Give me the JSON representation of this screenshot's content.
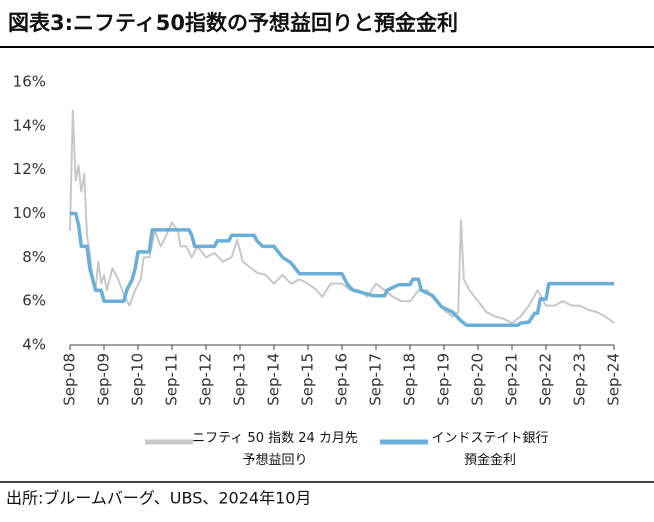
{
  "chart_data": {
    "type": "line",
    "title": "図表3:ニフティ50指数の予想益回りと預金金利",
    "source": "出所:ブルームバーグ、UBS、2024年10月",
    "ylim": [
      4,
      16
    ],
    "yticks": [
      {
        "value": 4,
        "label": "4%"
      },
      {
        "value": 6,
        "label": "6%"
      },
      {
        "value": 8,
        "label": "8%"
      },
      {
        "value": 10,
        "label": "10%"
      },
      {
        "value": 12,
        "label": "12%"
      },
      {
        "value": 14,
        "label": "14%"
      },
      {
        "value": 16,
        "label": "16%"
      }
    ],
    "xlim": [
      "2008-09",
      "2024-09"
    ],
    "xticks": [
      {
        "value": "2008-09",
        "label": "Sep-08"
      },
      {
        "value": "2009-09",
        "label": "Sep-09"
      },
      {
        "value": "2010-09",
        "label": "Sep-10"
      },
      {
        "value": "2011-09",
        "label": "Sep-11"
      },
      {
        "value": "2012-09",
        "label": "Sep-12"
      },
      {
        "value": "2013-09",
        "label": "Sep-13"
      },
      {
        "value": "2014-09",
        "label": "Sep-14"
      },
      {
        "value": "2015-09",
        "label": "Sep-15"
      },
      {
        "value": "2016-09",
        "label": "Sep-16"
      },
      {
        "value": "2017-09",
        "label": "Sep-17"
      },
      {
        "value": "2018-09",
        "label": "Sep-18"
      },
      {
        "value": "2019-09",
        "label": "Sep-19"
      },
      {
        "value": "2020-09",
        "label": "Sep-20"
      },
      {
        "value": "2021-09",
        "label": "Sep-21"
      },
      {
        "value": "2022-09",
        "label": "Sep-22"
      },
      {
        "value": "2023-09",
        "label": "Sep-23"
      },
      {
        "value": "2024-09",
        "label": "Sep-24"
      }
    ],
    "grid": false,
    "series": [
      {
        "name": "ニフティ 50 指数 24 カ月先\n予想益回り",
        "color": "#c8c8c8",
        "x": [
          "2008-09",
          "2008-10",
          "2008-11",
          "2008-12",
          "2009-01",
          "2009-02",
          "2009-03",
          "2009-04",
          "2009-05",
          "2009-06",
          "2009-07",
          "2009-08",
          "2009-09",
          "2009-10",
          "2009-12",
          "2010-02",
          "2010-04",
          "2010-06",
          "2010-08",
          "2010-10",
          "2010-11",
          "2011-01",
          "2011-03",
          "2011-05",
          "2011-07",
          "2011-09",
          "2011-11",
          "2011-12",
          "2012-02",
          "2012-04",
          "2012-06",
          "2012-09",
          "2012-12",
          "2013-03",
          "2013-06",
          "2013-08",
          "2013-10",
          "2014-01",
          "2014-03",
          "2014-06",
          "2014-09",
          "2014-12",
          "2015-03",
          "2015-06",
          "2015-09",
          "2015-12",
          "2016-02",
          "2016-05",
          "2016-09",
          "2016-12",
          "2017-03",
          "2017-06",
          "2017-09",
          "2017-12",
          "2018-03",
          "2018-06",
          "2018-09",
          "2018-12",
          "2019-03",
          "2019-06",
          "2019-09",
          "2019-12",
          "2020-02",
          "2020-03",
          "2020-04",
          "2020-06",
          "2020-09",
          "2020-12",
          "2021-03",
          "2021-06",
          "2021-09",
          "2021-12",
          "2022-03",
          "2022-06",
          "2022-09",
          "2022-12",
          "2023-03",
          "2023-06",
          "2023-09",
          "2023-12",
          "2024-03",
          "2024-06",
          "2024-09"
        ],
        "values": [
          9.2,
          14.7,
          11.5,
          12.2,
          11.0,
          11.8,
          9.0,
          8.2,
          7.0,
          6.5,
          7.8,
          6.8,
          7.2,
          6.5,
          7.5,
          7.0,
          6.3,
          5.8,
          6.5,
          7.0,
          8.0,
          8.0,
          9.2,
          8.5,
          9.0,
          9.6,
          9.2,
          8.5,
          8.5,
          8.0,
          8.5,
          8.0,
          8.2,
          7.8,
          8.0,
          8.8,
          7.8,
          7.5,
          7.3,
          7.2,
          6.8,
          7.2,
          6.8,
          7.0,
          6.8,
          6.5,
          6.2,
          6.8,
          6.8,
          6.5,
          6.5,
          6.2,
          6.8,
          6.5,
          6.2,
          6.0,
          6.0,
          6.5,
          6.5,
          6.0,
          5.6,
          5.3,
          5.5,
          9.7,
          7.0,
          6.5,
          6.0,
          5.5,
          5.3,
          5.2,
          5.0,
          5.3,
          5.8,
          6.5,
          5.8,
          5.8,
          6.0,
          5.8,
          5.8,
          5.6,
          5.5,
          5.3,
          5.0
        ]
      },
      {
        "name": "インドステイト銀行\n預金金利",
        "color": "#6aafd8",
        "x": [
          "2008-09",
          "2008-11",
          "2008-12",
          "2009-01",
          "2009-03",
          "2009-04",
          "2009-05",
          "2009-06",
          "2009-08",
          "2009-09",
          "2010-04",
          "2010-05",
          "2010-07",
          "2010-08",
          "2010-09",
          "2011-01",
          "2011-02",
          "2012-03",
          "2012-04",
          "2012-05",
          "2012-12",
          "2013-01",
          "2013-05",
          "2013-06",
          "2014-02",
          "2014-03",
          "2014-05",
          "2014-09",
          "2014-12",
          "2015-03",
          "2015-06",
          "2016-09",
          "2016-10",
          "2016-11",
          "2017-01",
          "2017-08",
          "2017-12",
          "2018-01",
          "2018-05",
          "2018-09",
          "2018-10",
          "2018-12",
          "2019-01",
          "2019-05",
          "2019-08",
          "2019-12",
          "2020-03",
          "2020-05",
          "2021-11",
          "2021-12",
          "2022-03",
          "2022-05",
          "2022-06",
          "2022-07",
          "2022-09",
          "2022-10",
          "2024-09"
        ],
        "values": [
          10,
          10,
          9.5,
          8.5,
          8.5,
          7.5,
          7,
          6.5,
          6.5,
          6,
          6,
          6.5,
          7,
          7.5,
          8.25,
          8.25,
          9.25,
          9.25,
          9,
          8.5,
          8.5,
          8.75,
          8.75,
          9,
          9,
          8.75,
          8.5,
          8.5,
          8,
          7.75,
          7.25,
          7.25,
          7,
          6.75,
          6.5,
          6.25,
          6.25,
          6.5,
          6.75,
          6.75,
          7,
          7,
          6.5,
          6.25,
          5.75,
          5.5,
          5.1,
          4.9,
          4.9,
          5,
          5.05,
          5.45,
          5.45,
          6.1,
          6.1,
          6.8,
          6.8
        ]
      }
    ]
  }
}
